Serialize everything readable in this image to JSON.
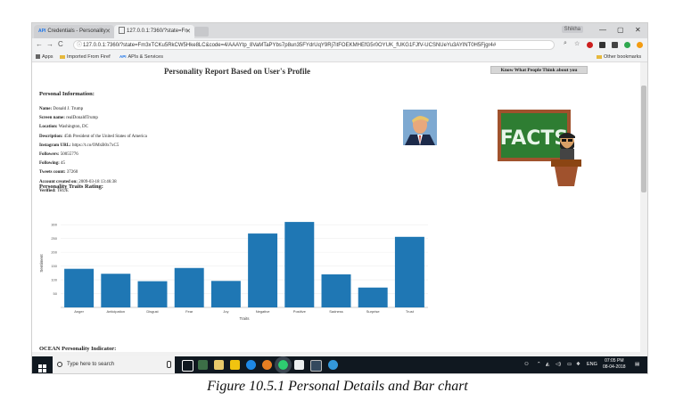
{
  "browser": {
    "tabs": [
      {
        "label": "Credentials - Personality",
        "favicon": "API"
      },
      {
        "label": "127.0.0.1:7360/?state=Fn",
        "favicon": ""
      }
    ],
    "profile_label": "Shikha",
    "window_controls": {
      "minimize": "—",
      "maximize": "▢",
      "close": "✕"
    },
    "nav": {
      "back": "←",
      "forward": "→",
      "reload": "C"
    },
    "url": "127.0.0.1:7360/?state=Fm3xTCKu5RkCW5Hke8LC&code=4/AAAYtp_8VaMTaPYbs7p8un35FYdrUqY9Rj7itFOEKMHEfG5r0OYUK_fUKG1FJfV-UCSNUeYu3AYlNT0H5Fjgr4#",
    "bookmarks": [
      {
        "label": "Apps",
        "icon": "apps-grid-icon"
      },
      {
        "label": "Imported From Firef",
        "icon": "folder-icon"
      },
      {
        "label": "APIs & Services",
        "icon": "api-icon"
      }
    ],
    "other_bookmarks": "Other bookmarks"
  },
  "page": {
    "title": "Personality Report Based on User's Profile",
    "know_button": "Know What People Think about you",
    "personal_heading": "Personal Information:",
    "personal_info": [
      {
        "key": "Name:",
        "value": "Donald J. Trump"
      },
      {
        "key": "Screen name:",
        "value": "realDonaldTrump"
      },
      {
        "key": "Location:",
        "value": "Washington, DC"
      },
      {
        "key": "Description:",
        "value": "45th President of the United States of America"
      },
      {
        "key": "Instagram URL:",
        "value": "https://t.co/OMxB0x7xC5"
      },
      {
        "key": "Followers:",
        "value": "50055776"
      },
      {
        "key": "Following:",
        "value": "45"
      },
      {
        "key": "Tweets count:",
        "value": "37260"
      },
      {
        "key": "Account created on:",
        "value": "2009-03-18 13:46:38"
      },
      {
        "key": "Verified:",
        "value": "TRUE"
      }
    ],
    "traits_heading": "Personality Traits Rating:",
    "ocean_heading": "OCEAN Personality Indicator:",
    "facts_image_text": "FACTS"
  },
  "chart_data": {
    "type": "bar",
    "title": "",
    "xlabel": "Traits",
    "ylabel": "Sentiment",
    "categories": [
      "Anger",
      "Anticipation",
      "Disgust",
      "Fear",
      "Joy",
      "Negative",
      "Positive",
      "Sadness",
      "Surprise",
      "Trust"
    ],
    "values": [
      140,
      122,
      95,
      143,
      96,
      268,
      310,
      120,
      72,
      256
    ],
    "ylim": [
      0,
      320
    ],
    "yticks": [
      50,
      100,
      150,
      200,
      250,
      300
    ],
    "bar_color": "#1f77b4",
    "grid": true
  },
  "taskbar": {
    "search_placeholder": "Type here to search",
    "language": "ENG",
    "time": "07:05 PM",
    "date": "08-04-2018"
  },
  "caption": "Figure 10.5.1 Personal Details and Bar chart",
  "colors": {
    "bar": "#1f77b4",
    "taskbar": "#101820",
    "chalkboard": "#2e7d32"
  }
}
